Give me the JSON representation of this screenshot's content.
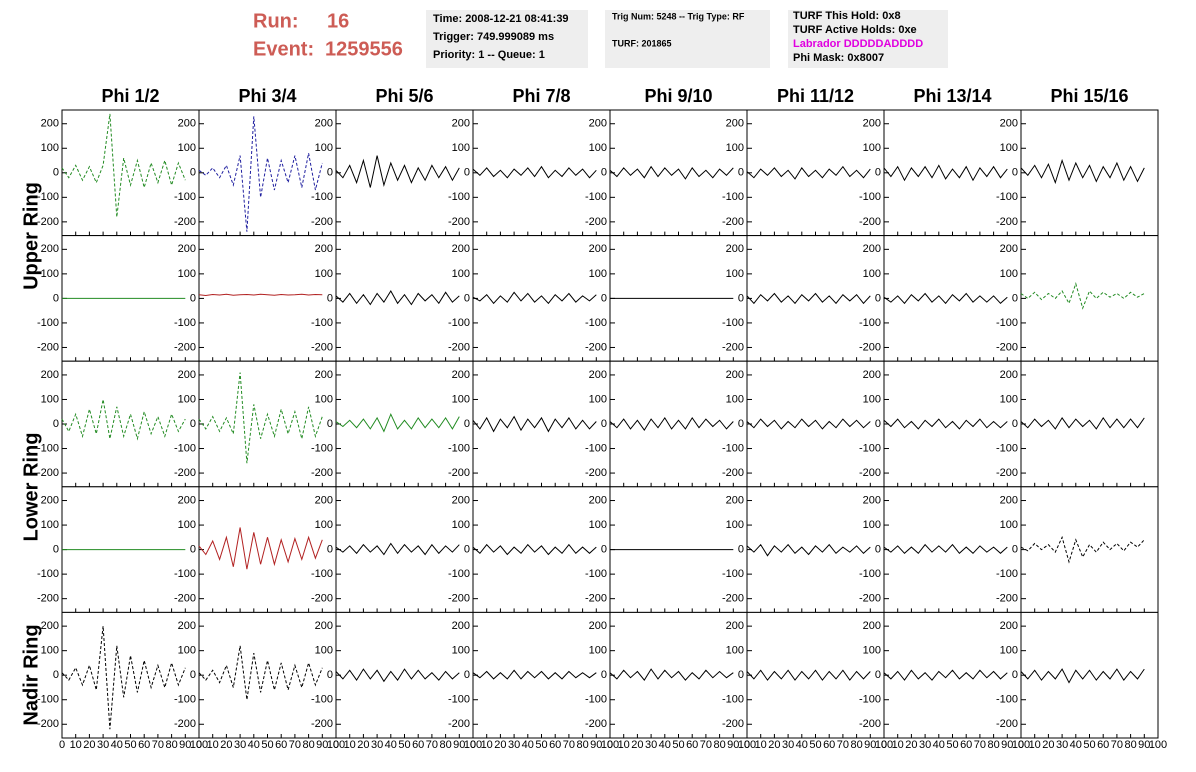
{
  "header": {
    "run_label": "Run:",
    "run": "16",
    "event_label": "Event:",
    "event": "1259556",
    "box1": [
      "Time: 2008-12-21 08:41:39",
      "Trigger: 749.999089 ms",
      "Priority: 1 -- Queue: 1"
    ],
    "box2": [
      "Trig Num: 5248 -- Trig Type: RF",
      "TURF: 201865"
    ],
    "box3": [
      "TURF This Hold: 0x8",
      "TURF Active Holds: 0xe",
      "Labrador DDDDDADDDD",
      "Phi Mask: 0x8007"
    ]
  },
  "ring_labels": [
    "Upper Ring",
    "Lower Ring",
    "Nadir Ring"
  ],
  "chart_data": {
    "type": "line",
    "columns": [
      "Phi 1/2",
      "Phi 3/4",
      "Phi 5/6",
      "Phi 7/8",
      "Phi 9/10",
      "Phi 11/12",
      "Phi 13/14",
      "Phi 15/16"
    ],
    "x": [
      0,
      5,
      10,
      15,
      20,
      25,
      30,
      35,
      40,
      45,
      50,
      55,
      60,
      65,
      70,
      75,
      80,
      85,
      90
    ],
    "xlim": [
      0,
      100
    ],
    "xticks": [
      0,
      10,
      20,
      30,
      40,
      50,
      60,
      70,
      80,
      90,
      100
    ],
    "ylim": [
      -256,
      256
    ],
    "yticks": [
      -200,
      -100,
      0,
      100,
      200
    ],
    "panels": [
      [
        {
          "color": "#228b22",
          "dash": true,
          "values": [
            20,
            -20,
            30,
            -30,
            25,
            -40,
            30,
            240,
            -180,
            60,
            -50,
            50,
            -60,
            40,
            -40,
            50,
            -50,
            40,
            -30
          ]
        },
        {
          "color": "#1f1f9f",
          "dash": true,
          "values": [
            10,
            -10,
            20,
            -20,
            30,
            -50,
            70,
            -240,
            230,
            -100,
            60,
            -70,
            50,
            -40,
            70,
            -60,
            80,
            -70,
            40
          ]
        },
        {
          "color": "#000000",
          "dash": false,
          "values": [
            10,
            -20,
            30,
            -40,
            50,
            -60,
            70,
            -50,
            40,
            -30,
            30,
            -40,
            20,
            -30,
            30,
            -20,
            25,
            -30,
            20
          ]
        },
        {
          "color": "#000000",
          "dash": false,
          "values": [
            15,
            -10,
            20,
            -15,
            10,
            -20,
            15,
            -10,
            20,
            -15,
            25,
            -20,
            10,
            -15,
            20,
            -10,
            15,
            -20,
            10
          ]
        },
        {
          "color": "#000000",
          "dash": false,
          "values": [
            10,
            -15,
            20,
            -10,
            15,
            -20,
            25,
            -15,
            20,
            -10,
            15,
            -25,
            20,
            -15,
            10,
            -20,
            15,
            -10,
            20
          ]
        },
        {
          "color": "#000000",
          "dash": false,
          "values": [
            5,
            -20,
            15,
            -10,
            20,
            -15,
            10,
            -25,
            20,
            -15,
            10,
            -20,
            15,
            -10,
            25,
            -15,
            10,
            -20,
            15
          ]
        },
        {
          "color": "#000000",
          "dash": false,
          "values": [
            20,
            -15,
            25,
            -30,
            20,
            -15,
            25,
            -20,
            30,
            -25,
            15,
            -20,
            25,
            -30,
            20,
            -15,
            25,
            -20,
            15
          ]
        },
        {
          "color": "#000000",
          "dash": false,
          "values": [
            20,
            -10,
            30,
            -20,
            35,
            -40,
            50,
            -30,
            40,
            -20,
            30,
            -35,
            25,
            -20,
            40,
            -30,
            25,
            -35,
            20
          ]
        }
      ],
      [
        {
          "color": "#228b22",
          "dash": false,
          "values": [
            0,
            0,
            0,
            0,
            0,
            0,
            0,
            0,
            0,
            0,
            0,
            0,
            0,
            0,
            0,
            0,
            0,
            0,
            0
          ]
        },
        {
          "color": "#b22222",
          "dash": false,
          "values": [
            15,
            12,
            16,
            14,
            17,
            13,
            15,
            16,
            14,
            17,
            15,
            13,
            16,
            14,
            15,
            17,
            14,
            16,
            15
          ]
        },
        {
          "color": "#000000",
          "dash": false,
          "values": [
            10,
            -15,
            20,
            -20,
            15,
            -25,
            20,
            -15,
            30,
            -20,
            15,
            -25,
            20,
            -10,
            15,
            -20,
            25,
            -15,
            10
          ]
        },
        {
          "color": "#000000",
          "dash": false,
          "values": [
            5,
            -10,
            15,
            -20,
            10,
            -15,
            25,
            -10,
            20,
            -15,
            10,
            -20,
            15,
            -10,
            20,
            -15,
            10,
            -10,
            15
          ]
        },
        {
          "color": "#000000",
          "dash": false,
          "values": [
            0,
            0,
            0,
            0,
            0,
            0,
            0,
            0,
            0,
            0,
            0,
            0,
            0,
            0,
            0,
            0,
            0,
            0,
            0
          ]
        },
        {
          "color": "#000000",
          "dash": false,
          "values": [
            10,
            -20,
            15,
            -10,
            20,
            -15,
            10,
            -20,
            15,
            -10,
            20,
            -15,
            10,
            -20,
            15,
            -10,
            15,
            -20,
            10
          ]
        },
        {
          "color": "#000000",
          "dash": false,
          "values": [
            5,
            -15,
            10,
            -20,
            15,
            -10,
            20,
            -15,
            10,
            -20,
            15,
            -10,
            20,
            -15,
            10,
            -15,
            10,
            -20,
            5
          ]
        },
        {
          "color": "#228b22",
          "dash": true,
          "values": [
            20,
            0,
            25,
            -5,
            20,
            0,
            30,
            -20,
            60,
            -40,
            30,
            0,
            25,
            5,
            20,
            0,
            25,
            5,
            20
          ]
        }
      ],
      [
        {
          "color": "#228b22",
          "dash": true,
          "values": [
            20,
            -30,
            40,
            -50,
            60,
            -40,
            100,
            -60,
            70,
            -50,
            40,
            -60,
            50,
            -40,
            30,
            -50,
            40,
            -30,
            20
          ]
        },
        {
          "color": "#228b22",
          "dash": true,
          "values": [
            20,
            -20,
            30,
            -30,
            25,
            -40,
            210,
            -160,
            80,
            -60,
            40,
            -50,
            60,
            -40,
            50,
            -60,
            70,
            -50,
            30
          ]
        },
        {
          "color": "#228b22",
          "dash": false,
          "values": [
            10,
            -10,
            15,
            -15,
            20,
            -20,
            25,
            -30,
            40,
            -20,
            15,
            -20,
            25,
            -15,
            20,
            -15,
            25,
            -20,
            30
          ]
        },
        {
          "color": "#000000",
          "dash": false,
          "values": [
            15,
            -20,
            25,
            -30,
            20,
            -15,
            30,
            -25,
            20,
            -15,
            25,
            -30,
            20,
            -15,
            25,
            -20,
            15,
            -20,
            10
          ]
        },
        {
          "color": "#000000",
          "dash": false,
          "values": [
            10,
            -15,
            20,
            -20,
            15,
            -25,
            20,
            -15,
            25,
            -20,
            15,
            -20,
            25,
            -15,
            20,
            -10,
            15,
            -20,
            10
          ]
        },
        {
          "color": "#000000",
          "dash": false,
          "values": [
            10,
            -15,
            20,
            -10,
            15,
            -20,
            10,
            -15,
            20,
            -10,
            15,
            -20,
            10,
            -15,
            20,
            -10,
            15,
            -15,
            10
          ]
        },
        {
          "color": "#000000",
          "dash": false,
          "values": [
            15,
            -10,
            20,
            -15,
            10,
            -20,
            15,
            -10,
            20,
            -15,
            10,
            -20,
            15,
            -10,
            20,
            -15,
            10,
            -15,
            10
          ]
        },
        {
          "color": "#000000",
          "dash": false,
          "values": [
            10,
            -15,
            20,
            -10,
            15,
            -20,
            25,
            -15,
            20,
            -10,
            15,
            -20,
            25,
            -15,
            20,
            -15,
            20,
            -15,
            25
          ]
        }
      ],
      [
        {
          "color": "#228b22",
          "dash": false,
          "values": [
            0,
            0,
            0,
            0,
            0,
            0,
            0,
            0,
            0,
            0,
            0,
            0,
            0,
            0,
            0,
            0,
            0,
            0,
            0
          ]
        },
        {
          "color": "#b22222",
          "dash": false,
          "values": [
            15,
            -20,
            35,
            -40,
            50,
            -70,
            90,
            -80,
            70,
            -60,
            50,
            -60,
            40,
            -50,
            45,
            -40,
            50,
            -35,
            40
          ]
        },
        {
          "color": "#000000",
          "dash": false,
          "values": [
            10,
            -10,
            15,
            -15,
            20,
            -10,
            15,
            -20,
            25,
            -15,
            20,
            -10,
            15,
            -20,
            20,
            -15,
            15,
            -10,
            20
          ]
        },
        {
          "color": "#000000",
          "dash": false,
          "values": [
            10,
            -15,
            20,
            -10,
            15,
            -20,
            10,
            -15,
            20,
            -10,
            15,
            -20,
            10,
            -15,
            20,
            -15,
            10,
            -15,
            10
          ]
        },
        {
          "color": "#000000",
          "dash": false,
          "values": [
            0,
            0,
            0,
            0,
            0,
            0,
            0,
            0,
            0,
            0,
            0,
            0,
            0,
            0,
            0,
            0,
            0,
            0,
            0
          ]
        },
        {
          "color": "#000000",
          "dash": false,
          "values": [
            15,
            -10,
            20,
            -25,
            15,
            -10,
            20,
            -15,
            10,
            -20,
            15,
            -10,
            20,
            -15,
            10,
            -10,
            15,
            -15,
            10
          ]
        },
        {
          "color": "#000000",
          "dash": false,
          "values": [
            10,
            -10,
            15,
            -15,
            10,
            -15,
            20,
            -10,
            15,
            -10,
            20,
            -15,
            10,
            -15,
            15,
            -10,
            10,
            -15,
            10
          ]
        },
        {
          "color": "#000000",
          "dash": true,
          "values": [
            10,
            -5,
            25,
            0,
            20,
            -10,
            50,
            -50,
            40,
            -30,
            20,
            -10,
            30,
            0,
            25,
            -5,
            30,
            10,
            40
          ]
        }
      ],
      [
        {
          "color": "#000000",
          "dash": true,
          "values": [
            10,
            -20,
            30,
            -40,
            40,
            -60,
            200,
            -220,
            120,
            -90,
            80,
            -70,
            60,
            -50,
            40,
            -50,
            50,
            -40,
            30
          ]
        },
        {
          "color": "#000000",
          "dash": true,
          "values": [
            10,
            -20,
            20,
            -30,
            40,
            -50,
            120,
            -100,
            90,
            -70,
            60,
            -60,
            50,
            -60,
            40,
            -50,
            50,
            -40,
            30
          ]
        },
        {
          "color": "#000000",
          "dash": false,
          "values": [
            15,
            -15,
            20,
            -20,
            25,
            -15,
            20,
            -25,
            15,
            -20,
            25,
            -15,
            20,
            -15,
            10,
            -20,
            15,
            -15,
            10
          ]
        },
        {
          "color": "#000000",
          "dash": false,
          "values": [
            10,
            -10,
            15,
            -15,
            10,
            -15,
            20,
            -15,
            15,
            -10,
            15,
            -15,
            10,
            -15,
            15,
            -10,
            10,
            -10,
            10
          ]
        },
        {
          "color": "#000000",
          "dash": false,
          "values": [
            10,
            -15,
            20,
            -10,
            15,
            -20,
            25,
            -15,
            20,
            -10,
            15,
            -20,
            10,
            -15,
            20,
            -10,
            15,
            -10,
            10
          ]
        },
        {
          "color": "#000000",
          "dash": false,
          "values": [
            15,
            -15,
            20,
            -20,
            15,
            -15,
            20,
            -20,
            15,
            -15,
            20,
            -20,
            15,
            -15,
            20,
            -20,
            15,
            -15,
            15
          ]
        },
        {
          "color": "#000000",
          "dash": false,
          "values": [
            10,
            -15,
            15,
            -20,
            20,
            -15,
            10,
            -20,
            15,
            -10,
            20,
            -15,
            10,
            -15,
            20,
            -10,
            15,
            -15,
            10
          ]
        },
        {
          "color": "#000000",
          "dash": false,
          "values": [
            15,
            -15,
            20,
            -20,
            15,
            -15,
            25,
            -30,
            20,
            -15,
            20,
            -20,
            15,
            -15,
            25,
            -20,
            15,
            -15,
            25
          ]
        }
      ]
    ]
  }
}
